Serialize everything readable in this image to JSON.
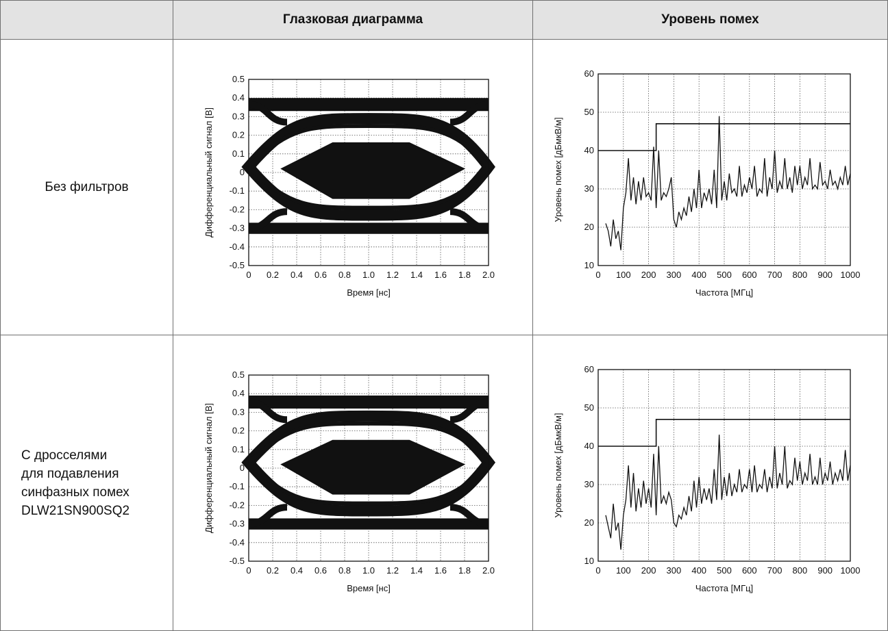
{
  "header": {
    "col0": "",
    "col1": "Глазковая диаграмма",
    "col2": "Уровень помех"
  },
  "rows": [
    {
      "label_lines": [
        "Без фильтров"
      ]
    },
    {
      "label_lines": [
        "С дросселями",
        "для подавления",
        "синфазных помех",
        "DLW21SN900SQ2"
      ]
    }
  ],
  "chart_data": [
    {
      "type": "eye-diagram",
      "row": 0,
      "xlabel": "Время [нс]",
      "ylabel": "Дифференциальный сигнал [В]",
      "xlim": [
        0,
        2.0
      ],
      "ylim": [
        -0.5,
        0.5
      ],
      "xticks": [
        "0",
        "0.2",
        "0.4",
        "0.6",
        "0.8",
        "1.0",
        "1.2",
        "1.4",
        "1.6",
        "1.8",
        "2.0"
      ],
      "yticks": [
        "0.5",
        "0.4",
        "0.3",
        "0.2",
        "0.1",
        "0",
        "-0.1",
        "-0.2",
        "-0.3",
        "-0.4",
        "-0.5"
      ],
      "grid": true,
      "high_level": [
        0.33,
        0.4
      ],
      "low_level": [
        -0.33,
        -0.27
      ],
      "eye_mask": [
        [
          0.27,
          0.02
        ],
        [
          0.7,
          0.16
        ],
        [
          1.34,
          0.16
        ],
        [
          1.8,
          0.02
        ],
        [
          1.34,
          -0.14
        ],
        [
          0.7,
          -0.14
        ]
      ]
    },
    {
      "type": "line",
      "row": 0,
      "xlabel": "Частота [МГц]",
      "ylabel": "Уровень помех [дБмкВ/м]",
      "xlim": [
        0,
        1000
      ],
      "ylim": [
        10,
        60
      ],
      "xticks": [
        "0",
        "100",
        "200",
        "300",
        "400",
        "500",
        "600",
        "700",
        "800",
        "900",
        "1000"
      ],
      "yticks": [
        "60",
        "50",
        "40",
        "30",
        "20",
        "10"
      ],
      "grid": true,
      "limit_line": [
        [
          0,
          40
        ],
        [
          230,
          40
        ],
        [
          230,
          47
        ],
        [
          1000,
          47
        ]
      ],
      "series": [
        {
          "x": [
            30,
            40,
            50,
            60,
            70,
            80,
            90,
            100,
            110,
            120,
            130,
            140,
            150,
            160,
            170,
            180,
            190,
            200,
            210,
            220,
            230,
            240,
            250,
            260,
            270,
            280,
            290,
            300,
            310,
            320,
            330,
            340,
            350,
            360,
            370,
            380,
            390,
            400,
            410,
            420,
            430,
            440,
            450,
            460,
            470,
            480,
            490,
            500,
            510,
            520,
            530,
            540,
            550,
            560,
            570,
            580,
            590,
            600,
            610,
            620,
            630,
            640,
            650,
            660,
            670,
            680,
            690,
            700,
            710,
            720,
            730,
            740,
            750,
            760,
            770,
            780,
            790,
            800,
            810,
            820,
            830,
            840,
            850,
            860,
            870,
            880,
            890,
            900,
            910,
            920,
            930,
            940,
            950,
            960,
            970,
            980,
            990,
            1000
          ],
          "y": [
            21,
            19,
            15,
            22,
            17,
            19,
            14,
            25,
            29,
            38,
            27,
            33,
            26,
            32,
            27,
            33,
            28,
            29,
            27,
            41,
            25,
            40,
            27,
            29,
            28,
            30,
            33,
            22,
            20,
            24,
            22,
            25,
            23,
            28,
            24,
            30,
            25,
            35,
            25,
            29,
            27,
            30,
            26,
            35,
            25,
            49,
            27,
            32,
            27,
            34,
            29,
            30,
            28,
            36,
            28,
            31,
            29,
            33,
            30,
            36,
            28,
            30,
            29,
            38,
            28,
            33,
            30,
            40,
            29,
            32,
            30,
            38,
            30,
            33,
            29,
            36,
            31,
            36,
            30,
            33,
            31,
            38,
            30,
            31,
            30,
            37,
            31,
            32,
            30,
            35,
            31,
            32,
            30,
            33,
            31,
            36,
            31,
            34
          ]
        }
      ]
    },
    {
      "type": "eye-diagram",
      "row": 1,
      "xlabel": "Время [нс]",
      "ylabel": "Дифференциальный сигнал [В]",
      "xlim": [
        0,
        2.0
      ],
      "ylim": [
        -0.5,
        0.5
      ],
      "xticks": [
        "0",
        "0.2",
        "0.4",
        "0.6",
        "0.8",
        "1.0",
        "1.2",
        "1.4",
        "1.6",
        "1.8",
        "2.0"
      ],
      "yticks": [
        "0.5",
        "0.4",
        "0.3",
        "0.2",
        "0.1",
        "0",
        "-0.1",
        "-0.2",
        "-0.3",
        "-0.4",
        "-0.5"
      ],
      "grid": true,
      "high_level": [
        0.32,
        0.39
      ],
      "low_level": [
        -0.33,
        -0.27
      ],
      "eye_mask": [
        [
          0.27,
          0.02
        ],
        [
          0.7,
          0.15
        ],
        [
          1.34,
          0.15
        ],
        [
          1.8,
          0.02
        ],
        [
          1.34,
          -0.14
        ],
        [
          0.7,
          -0.14
        ]
      ]
    },
    {
      "type": "line",
      "row": 1,
      "xlabel": "Частота [МГц]",
      "ylabel": "Уровень помех [дБмкВ/м]",
      "xlim": [
        0,
        1000
      ],
      "ylim": [
        10,
        60
      ],
      "xticks": [
        "0",
        "100",
        "200",
        "300",
        "400",
        "500",
        "600",
        "700",
        "800",
        "900",
        "1000"
      ],
      "yticks": [
        "60",
        "50",
        "40",
        "30",
        "20",
        "10"
      ],
      "grid": true,
      "limit_line": [
        [
          0,
          40
        ],
        [
          230,
          40
        ],
        [
          230,
          47
        ],
        [
          1000,
          47
        ]
      ],
      "series": [
        {
          "x": [
            30,
            40,
            50,
            60,
            70,
            80,
            90,
            100,
            110,
            120,
            130,
            140,
            150,
            160,
            170,
            180,
            190,
            200,
            210,
            220,
            230,
            240,
            250,
            260,
            270,
            280,
            290,
            300,
            310,
            320,
            330,
            340,
            350,
            360,
            370,
            380,
            390,
            400,
            410,
            420,
            430,
            440,
            450,
            460,
            470,
            480,
            490,
            500,
            510,
            520,
            530,
            540,
            550,
            560,
            570,
            580,
            590,
            600,
            610,
            620,
            630,
            640,
            650,
            660,
            670,
            680,
            690,
            700,
            710,
            720,
            730,
            740,
            750,
            760,
            770,
            780,
            790,
            800,
            810,
            820,
            830,
            840,
            850,
            860,
            870,
            880,
            890,
            900,
            910,
            920,
            930,
            940,
            950,
            960,
            970,
            980,
            990,
            1000
          ],
          "y": [
            22,
            19,
            16,
            25,
            18,
            20,
            13,
            22,
            26,
            35,
            24,
            33,
            23,
            29,
            24,
            31,
            25,
            29,
            24,
            38,
            22,
            40,
            25,
            27,
            25,
            28,
            26,
            20,
            19,
            22,
            21,
            24,
            22,
            27,
            23,
            31,
            24,
            32,
            25,
            29,
            26,
            29,
            25,
            34,
            26,
            43,
            26,
            32,
            27,
            33,
            27,
            30,
            28,
            34,
            28,
            30,
            29,
            34,
            28,
            35,
            28,
            30,
            29,
            34,
            28,
            32,
            29,
            40,
            29,
            33,
            30,
            40,
            29,
            31,
            30,
            37,
            31,
            36,
            30,
            33,
            31,
            38,
            30,
            32,
            30,
            37,
            30,
            33,
            31,
            36,
            30,
            33,
            31,
            34,
            31,
            39,
            31,
            35
          ]
        }
      ]
    }
  ]
}
